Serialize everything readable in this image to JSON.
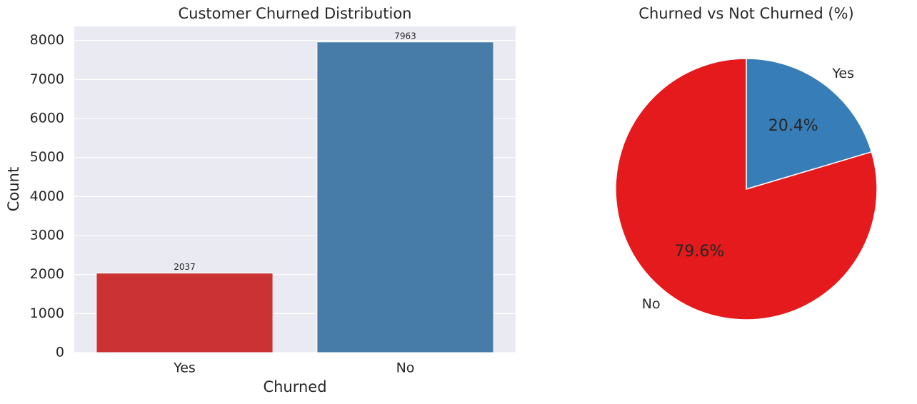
{
  "chart_data": [
    {
      "type": "bar",
      "title": "Customer Churned Distribution",
      "xlabel": "Churned",
      "ylabel": "Count",
      "categories": [
        "Yes",
        "No"
      ],
      "values": [
        2037,
        7963
      ],
      "colors": [
        "#ca3233",
        "#477ca8"
      ],
      "ylim": [
        0,
        8361
      ],
      "yticks": [
        0,
        1000,
        2000,
        3000,
        4000,
        5000,
        6000,
        7000,
        8000
      ],
      "grid": true
    },
    {
      "type": "pie",
      "title": "Churned vs Not Churned (%)",
      "categories": [
        "Yes",
        "No"
      ],
      "values": [
        20.4,
        79.6
      ],
      "value_labels": [
        "20.4%",
        "79.6%"
      ],
      "colors": [
        "#377eb8",
        "#e41a1c"
      ]
    }
  ]
}
